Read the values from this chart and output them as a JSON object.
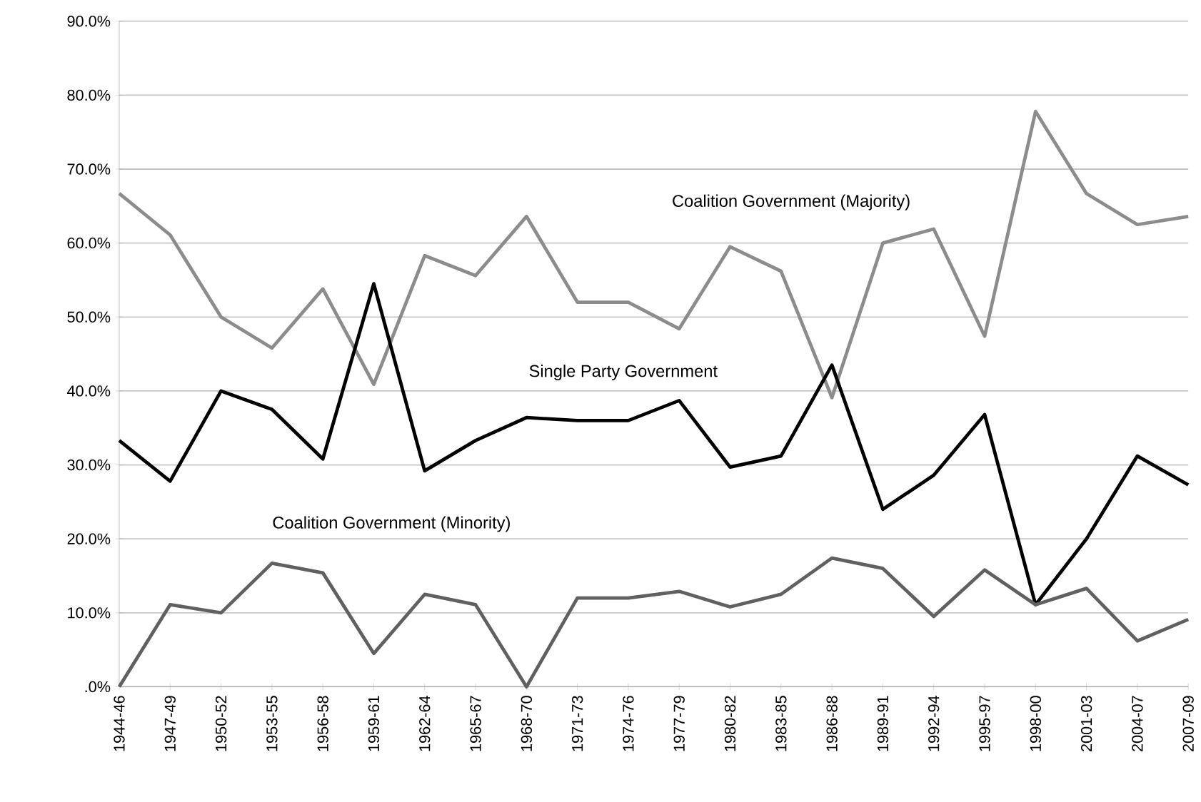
{
  "chart_data": {
    "type": "line",
    "categories": [
      "1944-46",
      "1947-49",
      "1950-52",
      "1953-55",
      "1956-58",
      "1959-61",
      "1962-64",
      "1965-67",
      "1968-70",
      "1971-73",
      "1974-76",
      "1977-79",
      "1980-82",
      "1983-85",
      "1986-88",
      "1989-91",
      "1992-94",
      "1995-97",
      "1998-00",
      "2001-03",
      "2004-07",
      "2007-09"
    ],
    "series": [
      {
        "name": "Coalition Government (Majority)",
        "color": "#8c8c8c",
        "values": [
          66.7,
          61.1,
          50,
          45.8,
          53.8,
          40.9,
          58.3,
          55.6,
          63.6,
          52,
          52,
          48.4,
          59.5,
          56.2,
          39.1,
          60,
          61.9,
          47.4,
          77.8,
          66.7,
          62.5,
          63.6
        ]
      },
      {
        "name": "Single Party Government",
        "color": "#000000",
        "values": [
          33.3,
          27.8,
          40,
          37.5,
          30.8,
          54.5,
          29.2,
          33.3,
          36.4,
          36,
          36,
          38.7,
          29.7,
          31.2,
          43.5,
          24,
          28.6,
          36.8,
          11.1,
          20,
          31.2,
          27.3
        ]
      },
      {
        "name": "Coalition Government (Minority)",
        "color": "#606060",
        "values": [
          0,
          11.1,
          10,
          16.7,
          15.4,
          4.5,
          12.5,
          11.1,
          0,
          12,
          12,
          12.9,
          10.8,
          12.5,
          17.4,
          16,
          9.5,
          15.8,
          11.1,
          13.3,
          6.2,
          9.1
        ]
      }
    ],
    "ylim": [
      0,
      90
    ],
    "yticks": [
      {
        "value": 0,
        "label": ".0%"
      },
      {
        "value": 10,
        "label": "10.0%"
      },
      {
        "value": 20,
        "label": "20.0%"
      },
      {
        "value": 30,
        "label": "30.0%"
      },
      {
        "value": 40,
        "label": "40.0%"
      },
      {
        "value": 50,
        "label": "50.0%"
      },
      {
        "value": 60,
        "label": "60.0%"
      },
      {
        "value": 70,
        "label": "70.0%"
      },
      {
        "value": 80,
        "label": "80.0%"
      },
      {
        "value": 90,
        "label": "90.0%"
      }
    ],
    "grid": "y",
    "marker": "none",
    "line_style": "solid"
  }
}
